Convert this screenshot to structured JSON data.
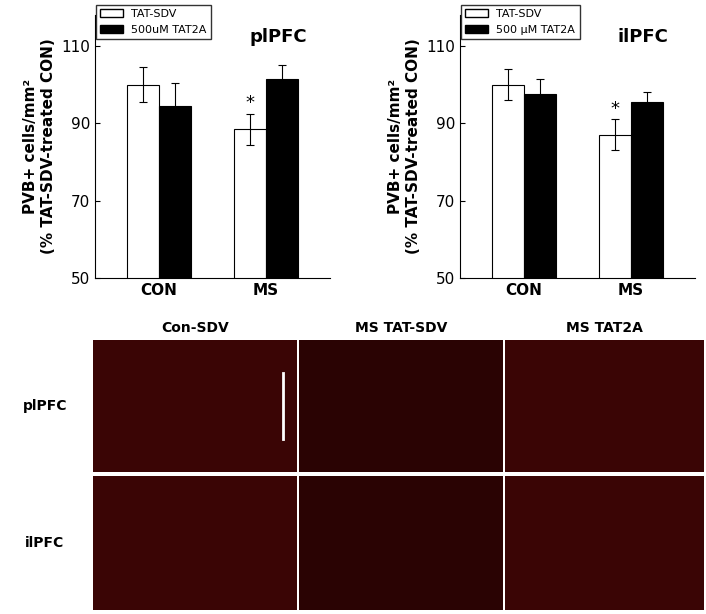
{
  "chart_data": [
    {
      "type": "bar",
      "title": "plPFC",
      "y_label": "PVB+ cells/mm²\n(% TAT-SDV-treated CON)",
      "categories": [
        "CON",
        "MS"
      ],
      "series": [
        {
          "name": "TAT-SDV",
          "color": "#ffffff",
          "values": [
            100,
            88.5
          ],
          "errors": [
            4.5,
            4
          ]
        },
        {
          "name": "500uM TAT2A",
          "color": "#000000",
          "values": [
            94.5,
            101.5
          ],
          "errors": [
            6,
            3.5
          ]
        }
      ],
      "annotations": [
        {
          "text": "*",
          "category": "MS",
          "series": "TAT-SDV"
        }
      ],
      "ylim": [
        50,
        118
      ],
      "yticks": [
        50,
        70,
        90,
        110
      ],
      "legend": "upper left"
    },
    {
      "type": "bar",
      "title": "ilPFC",
      "y_label": "PVB+ cells/mm²\n(% TAT-SDV-treated CON)",
      "categories": [
        "CON",
        "MS"
      ],
      "series": [
        {
          "name": "TAT-SDV",
          "color": "#ffffff",
          "values": [
            100,
            87
          ],
          "errors": [
            4,
            4
          ]
        },
        {
          "name": "500 μM TAT2A",
          "color": "#000000",
          "values": [
            97.5,
            95.5
          ],
          "errors": [
            4,
            2.5
          ]
        }
      ],
      "annotations": [
        {
          "text": "*",
          "category": "MS",
          "series": "TAT-SDV"
        }
      ],
      "ylim": [
        50,
        118
      ],
      "yticks": [
        50,
        70,
        90,
        110
      ],
      "legend": "upper left"
    }
  ],
  "image_panels": {
    "columns": [
      "Con-SDV",
      "MS TAT-SDV",
      "MS TAT2A"
    ],
    "rows": [
      "plPFC",
      "ilPFC"
    ]
  }
}
